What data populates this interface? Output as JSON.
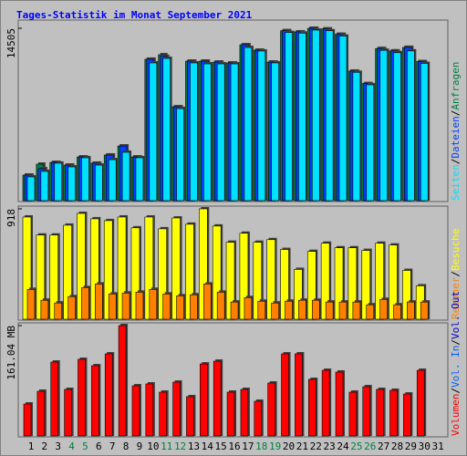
{
  "legend_separator": "/",
  "chart_data": [
    {
      "type": "bar",
      "title": "Tages-Statistik im Monat September 2021",
      "ylim": [
        0,
        14505
      ],
      "yticks": [
        14505
      ],
      "series": [
        {
          "name": "Anfragen",
          "color": "#008040",
          "values": [
            2150,
            3070,
            3220,
            2990,
            3680,
            3150,
            3840,
            4600,
            3680,
            11900,
            12280,
            7900,
            11740,
            11740,
            11660,
            11590,
            13120,
            12660,
            11660,
            14300,
            14200,
            14505,
            14450,
            14000,
            10900,
            9850,
            12800,
            12600,
            12900,
            11700,
            null
          ]
        },
        {
          "name": "Dateien",
          "color": "#0040ff",
          "values": [
            2150,
            2690,
            3220,
            2990,
            3680,
            3150,
            3840,
            4600,
            3680,
            11900,
            12150,
            7900,
            11740,
            11740,
            11660,
            11590,
            13120,
            12660,
            11660,
            14300,
            14200,
            14505,
            14450,
            14000,
            10900,
            9850,
            12800,
            12600,
            12900,
            11700,
            null
          ]
        },
        {
          "name": "Seiten",
          "color": "#00e0ff",
          "values": [
            2000,
            2460,
            3150,
            2840,
            3610,
            2990,
            3450,
            4070,
            3610,
            11590,
            11970,
            7750,
            11590,
            11510,
            11510,
            11510,
            12890,
            12590,
            11590,
            14150,
            14100,
            14350,
            14300,
            13850,
            10800,
            9750,
            12650,
            12450,
            12600,
            11550,
            null
          ]
        }
      ]
    },
    {
      "type": "bar",
      "ylim": [
        0,
        918
      ],
      "yticks": [
        918
      ],
      "series": [
        {
          "name": "Besuche",
          "color": "#ffff00",
          "values": [
            850,
            700,
            700,
            782,
            880,
            835,
            820,
            850,
            760,
            850,
            752,
            842,
            790,
            918,
            775,
            640,
            715,
            640,
            662,
            580,
            414,
            564,
            632,
            594,
            594,
            572,
            632,
            617,
            406,
            278,
            null
          ]
        },
        {
          "name": "Rechner",
          "color": "#ff8000",
          "values": [
            248,
            158,
            135,
            188,
            263,
            293,
            210,
            218,
            225,
            248,
            210,
            195,
            203,
            293,
            225,
            143,
            180,
            150,
            135,
            150,
            158,
            158,
            143,
            143,
            143,
            120,
            165,
            120,
            143,
            143,
            null
          ]
        }
      ]
    },
    {
      "type": "bar",
      "ylim": [
        0,
        161.04
      ],
      "yticks": [
        {
          "value": 161.04,
          "label": "161.04 MB"
        }
      ],
      "categories": [
        "1",
        "2",
        "3",
        "4",
        "5",
        "6",
        "7",
        "8",
        "9",
        "10",
        "11",
        "12",
        "13",
        "14",
        "15",
        "16",
        "17",
        "18",
        "19",
        "20",
        "21",
        "22",
        "23",
        "24",
        "25",
        "26",
        "27",
        "28",
        "29",
        "30",
        "31"
      ],
      "category_colors": [
        "#000000",
        "#000000",
        "#000000",
        "#008040",
        "#008040",
        "#000000",
        "#000000",
        "#000000",
        "#000000",
        "#000000",
        "#008040",
        "#008040",
        "#000000",
        "#000000",
        "#000000",
        "#000000",
        "#000000",
        "#008040",
        "#008040",
        "#000000",
        "#000000",
        "#000000",
        "#000000",
        "#000000",
        "#008040",
        "#008040",
        "#000000",
        "#000000",
        "#000000",
        "#000000",
        "#000000"
      ],
      "series": [
        {
          "name": "Vol. Out",
          "color": "#0000c0"
        },
        {
          "name": "Vol. In",
          "color": "#0060ff"
        },
        {
          "name": "Volumen",
          "color": "#ff0000",
          "values": [
            46.6,
            65.2,
            107.8,
            67.9,
            111.8,
            102.5,
            119.8,
            161.04,
            73.2,
            75.9,
            63.9,
            78.5,
            57.3,
            105.1,
            109.1,
            63.9,
            67.9,
            50.6,
            77.2,
            119.8,
            119.8,
            82.5,
            95.8,
            93.2,
            63.9,
            71.9,
            67.9,
            66.6,
            61.2,
            95.8,
            null
          ]
        }
      ]
    }
  ]
}
